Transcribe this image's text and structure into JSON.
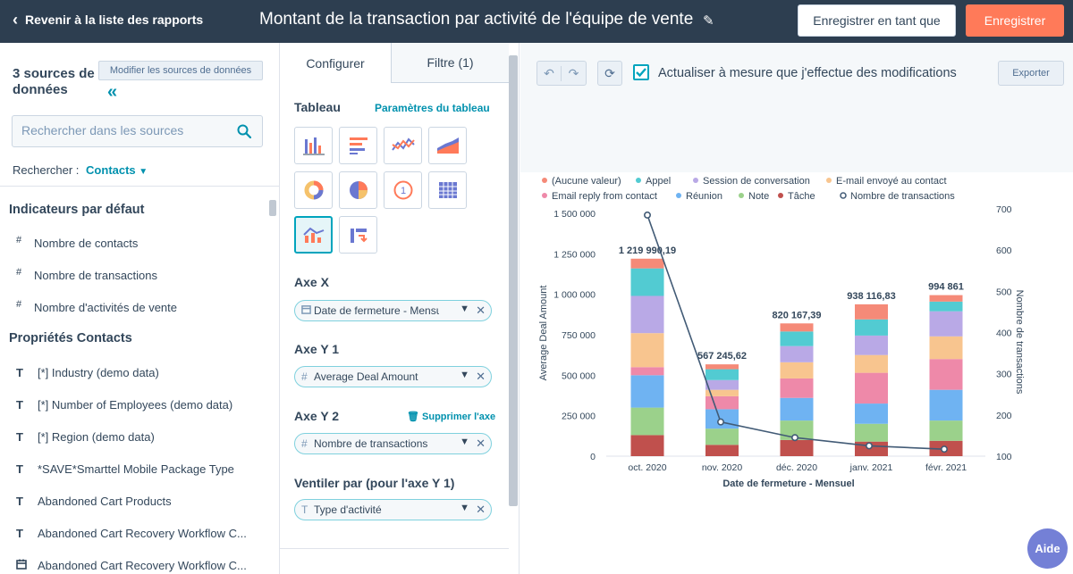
{
  "header": {
    "back_label": "Revenir à la liste des rapports",
    "title": "Montant de la transaction par activité de l'équipe de vente",
    "save_as_label": "Enregistrer en tant que",
    "save_label": "Enregistrer"
  },
  "sidebar": {
    "source_count": "3 sources de données",
    "modify_label": "Modifier les sources de données",
    "search_placeholder": "Rechercher dans les sources",
    "search_for_label": "Rechercher :",
    "search_for_value": "Contacts",
    "default_section": "Indicateurs par défaut",
    "default_items": [
      {
        "label": "Nombre de contacts",
        "type": "#"
      },
      {
        "label": "Nombre de transactions",
        "type": "#"
      },
      {
        "label": "Nombre d'activités de vente",
        "type": "#"
      }
    ],
    "props_section": "Propriétés Contacts",
    "props_items": [
      {
        "label": "[*] Industry (demo data)",
        "type": "T"
      },
      {
        "label": "[*] Number of Employees (demo data)",
        "type": "T"
      },
      {
        "label": "[*] Region (demo data)",
        "type": "T"
      },
      {
        "label": "*SAVE*Smarttel Mobile Package Type",
        "type": "T"
      },
      {
        "label": "Abandoned Cart Products",
        "type": "T"
      },
      {
        "label": "Abandoned Cart Recovery Workflow C...",
        "type": "T"
      },
      {
        "label": "Abandoned Cart Recovery Workflow C...",
        "type": "date"
      }
    ]
  },
  "config": {
    "tab_configure": "Configurer",
    "tab_filter": "Filtre (1)",
    "table_label": "Tableau",
    "table_params": "Paramètres du tableau",
    "x_axis_label": "Axe X",
    "x_axis_value": "Date de fermeture - Mensuel",
    "y1_label": "Axe Y 1",
    "y1_value": "Average Deal Amount",
    "y2_label": "Axe Y 2",
    "y2_delete": "Supprimer l'axe",
    "y2_value": "Nombre de transactions",
    "breakdown_label": "Ventiler par (pour l'axe Y 1)",
    "breakdown_value": "Type d'activité"
  },
  "toolbar": {
    "auto_refresh_label": "Actualiser à mesure que j'effectue des modifications",
    "export_label": "Exporter"
  },
  "help_label": "Aide",
  "colors": {
    "header_bg": "#2d3e50",
    "accent": "#00a4bd",
    "save": "#ff7a59",
    "help": "#7480d6"
  },
  "chart_data": {
    "type": "bar",
    "stacked": true,
    "xlabel": "Date de fermeture - Mensuel",
    "ylabel": "Average Deal Amount",
    "y2label": "Nombre de transactions",
    "ylim": [
      0,
      1500000
    ],
    "y2lim": [
      100,
      700
    ],
    "y_ticks": [
      "0",
      "250 000",
      "500 000",
      "750 000",
      "1 000 000",
      "1 250 000",
      "1 500 000"
    ],
    "y2_ticks": [
      "100",
      "200",
      "300",
      "400",
      "500",
      "600",
      "700"
    ],
    "categories": [
      "oct. 2020",
      "nov. 2020",
      "déc. 2020",
      "janv. 2021",
      "févr. 2021"
    ],
    "totals": [
      1219990.19,
      567245.62,
      820167.39,
      938116.83,
      994861
    ],
    "total_labels": [
      "1 219 990,19",
      "567 245,62",
      "820 167,39",
      "938 116,83",
      "994 861"
    ],
    "series": [
      {
        "name": "Tâche",
        "color": "#c0504d",
        "values": [
          130000,
          70000,
          100000,
          90000,
          95000
        ]
      },
      {
        "name": "Note",
        "color": "#9bd18b",
        "values": [
          170000,
          100000,
          120000,
          110000,
          125000
        ]
      },
      {
        "name": "Réunion",
        "color": "#6fb3f2",
        "values": [
          200000,
          120000,
          140000,
          125000,
          190000
        ]
      },
      {
        "name": "Email reply from contact",
        "color": "#ee89a9",
        "values": [
          50000,
          80000,
          120000,
          190000,
          190000
        ]
      },
      {
        "name": "E-mail envoyé au contact",
        "color": "#f8c58f",
        "values": [
          210000,
          40000,
          100000,
          110000,
          140000
        ]
      },
      {
        "name": "Session de conversation",
        "color": "#b9a9e6",
        "values": [
          230000,
          60000,
          100000,
          120000,
          155000
        ]
      },
      {
        "name": "Appel",
        "color": "#52cbd2",
        "values": [
          170000,
          67245.62,
          90167.39,
          100000,
          59861
        ]
      },
      {
        "name": "(Aucune valeur)",
        "color": "#f58a78",
        "values": [
          59990.19,
          30000,
          50000,
          93116.83,
          40000
        ]
      }
    ],
    "line_series": {
      "name": "Nombre de transactions",
      "color": "#425b76",
      "values": [
        648,
        183,
        145,
        125,
        117
      ],
      "extra_start": 685
    },
    "legend_order": [
      "(Aucune valeur)",
      "Appel",
      "Session de conversation",
      "E-mail envoyé au contact",
      "Email reply from contact",
      "Réunion",
      "Note",
      "Tâche",
      "Nombre de transactions"
    ],
    "legend_position": "top"
  }
}
